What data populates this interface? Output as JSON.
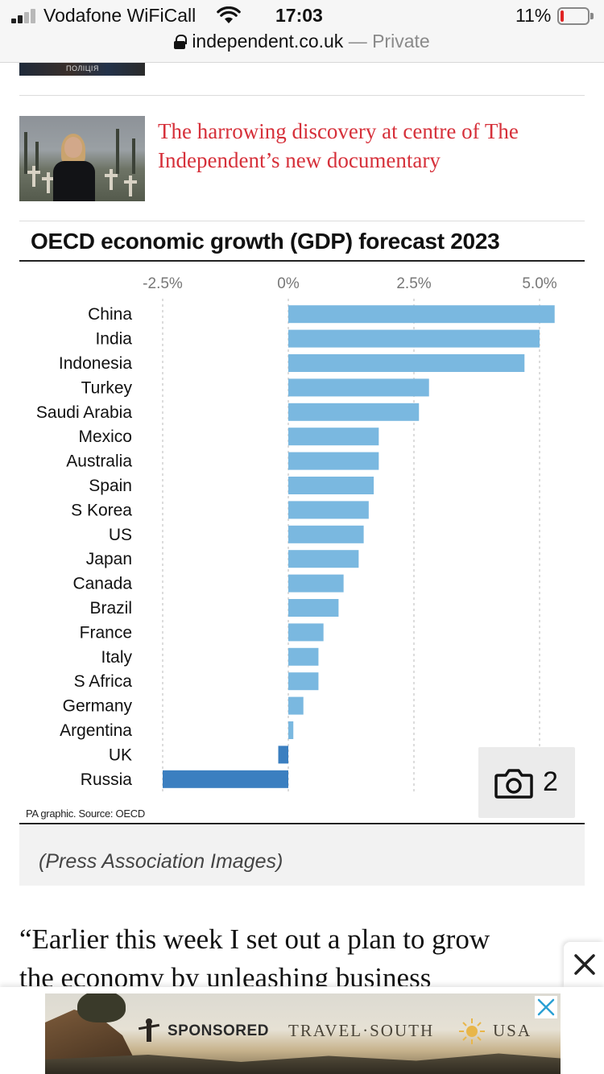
{
  "status_bar": {
    "carrier": "Vodafone WiFiCall",
    "time": "17:03",
    "battery_percent": "11%",
    "battery_level": 0.11,
    "signal_bars_active": 2,
    "signal_bars_total": 4
  },
  "url_bar": {
    "domain": "independent.co.uk",
    "separator": "—",
    "mode": "Private"
  },
  "previous_article": {
    "thumbnail_caption": "ПОЛІЦІЯ"
  },
  "related_article": {
    "title": "The harrowing discovery at centre of The Independent’s new documentary",
    "title_color": "#d6303a"
  },
  "chart_data": {
    "type": "bar",
    "orientation": "horizontal",
    "title": "OECD economic growth (GDP) forecast 2023",
    "source": "PA graphic. Source: OECD",
    "x_ticks": [
      "-2.5%",
      "0%",
      "2.5%",
      "5.0%"
    ],
    "x_tick_values": [
      -2.5,
      0,
      2.5,
      5.0
    ],
    "xlim": [
      -2.5,
      5.0
    ],
    "unit": "%",
    "grid": "vertical dotted",
    "categories": [
      "China",
      "India",
      "Indonesia",
      "Turkey",
      "Saudi Arabia",
      "Mexico",
      "Australia",
      "Spain",
      "S Korea",
      "US",
      "Japan",
      "Canada",
      "Brazil",
      "France",
      "Italy",
      "S Africa",
      "Germany",
      "Argentina",
      "UK",
      "Russia"
    ],
    "values": [
      5.3,
      5.0,
      4.7,
      2.8,
      2.6,
      1.8,
      1.8,
      1.7,
      1.6,
      1.5,
      1.4,
      1.1,
      1.0,
      0.7,
      0.6,
      0.6,
      0.3,
      0.1,
      -0.2,
      -2.5
    ],
    "colors": {
      "positive": "#7ab8e0",
      "negative": "#3b7fc0"
    }
  },
  "gallery": {
    "count": "2",
    "icon": "camera-icon"
  },
  "caption": "(Press Association Images)",
  "article": {
    "line1": "“Earlier this week I set out a plan to grow",
    "line2": "the economy by unleashing business"
  },
  "ad": {
    "sponsored_label": "SPONSORED",
    "brand_left": "TRAVEL·SOUTH",
    "brand_right": "USA",
    "close_icon": "x-icon"
  }
}
